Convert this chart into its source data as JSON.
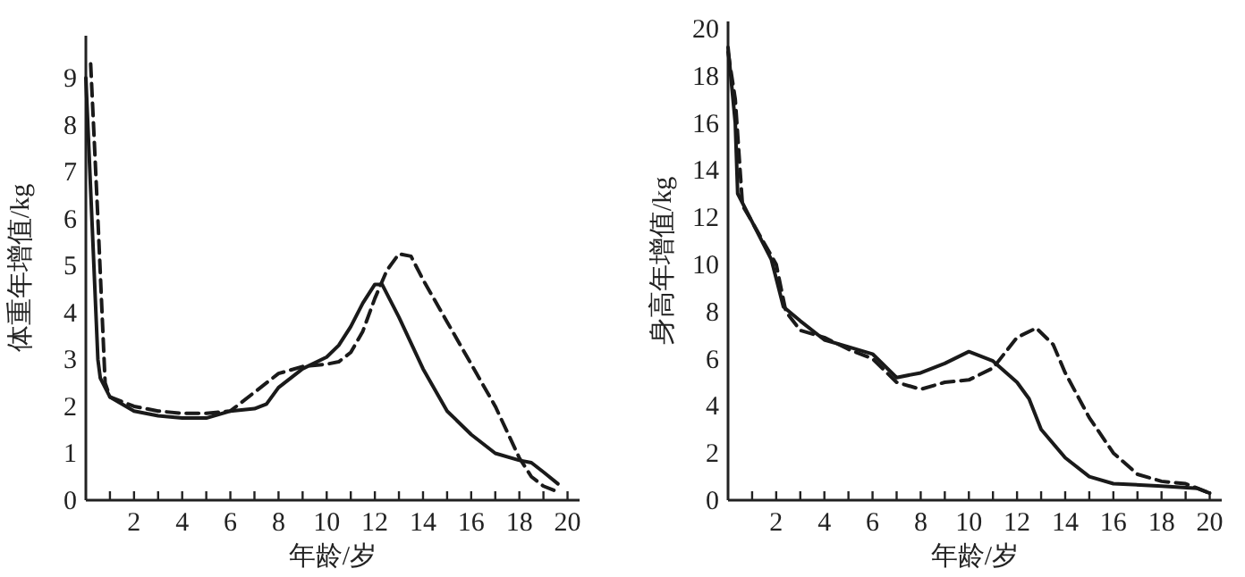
{
  "chart_data": [
    {
      "type": "line",
      "xlabel": "年龄/岁",
      "ylabel": "体重年增值/kg",
      "xlim": [
        0,
        20.5
      ],
      "ylim": [
        0,
        9.9
      ],
      "xticks": [
        {
          "value": 1,
          "label": null
        },
        2,
        {
          "value": 3,
          "label": null
        },
        4,
        {
          "value": 5,
          "label": null
        },
        6,
        {
          "value": 7,
          "label": null
        },
        8,
        {
          "value": 9,
          "label": null
        },
        10,
        {
          "value": 11,
          "label": null
        },
        12,
        {
          "value": 13,
          "label": null
        },
        14,
        {
          "value": 15,
          "label": null
        },
        16,
        {
          "value": 17,
          "label": null
        },
        18,
        {
          "value": 19,
          "label": null
        },
        20
      ],
      "yticks": [
        0,
        1,
        2,
        3,
        4,
        5,
        6,
        7,
        8,
        9
      ],
      "grid": false,
      "marker": "none",
      "series": [
        {
          "color": "#1a1a1a",
          "line_style": "solid",
          "x": [
            0,
            0.5,
            0.6,
            1,
            2,
            3,
            4,
            5,
            6,
            7,
            7.5,
            8,
            9,
            10,
            10.5,
            11,
            11.5,
            12,
            12.3,
            13,
            14,
            15,
            16,
            17,
            18,
            18.5,
            19,
            19.6
          ],
          "values": [
            9,
            3,
            2.6,
            2.2,
            1.9,
            1.8,
            1.75,
            1.75,
            1.9,
            1.95,
            2.05,
            2.4,
            2.8,
            3.05,
            3.3,
            3.7,
            4.2,
            4.6,
            4.6,
            3.9,
            2.8,
            1.9,
            1.4,
            1,
            0.85,
            0.8,
            0.6,
            0.35
          ]
        },
        {
          "color": "#1a1a1a",
          "line_style": "dashed",
          "x": [
            0.2,
            0.5,
            0.8,
            1,
            2,
            3,
            4,
            5,
            6,
            7,
            8,
            9,
            10,
            10.5,
            11,
            11.5,
            12,
            12.5,
            13,
            13.5,
            14,
            15,
            16,
            17,
            18,
            18.5,
            19,
            19.5
          ],
          "values": [
            9.3,
            6,
            2.5,
            2.2,
            2,
            1.9,
            1.85,
            1.85,
            1.9,
            2.3,
            2.7,
            2.85,
            2.9,
            2.95,
            3.15,
            3.6,
            4.3,
            4.9,
            5.25,
            5.2,
            4.7,
            3.8,
            2.9,
            2,
            0.9,
            0.5,
            0.3,
            0.2
          ]
        }
      ]
    },
    {
      "type": "line",
      "xlabel": "年龄/岁",
      "ylabel": "身高年增值/kg",
      "xlim": [
        0,
        20.5
      ],
      "ylim": [
        0,
        20.3
      ],
      "xticks": [
        {
          "value": 1,
          "label": null
        },
        2,
        {
          "value": 3,
          "label": null
        },
        4,
        {
          "value": 5,
          "label": null
        },
        6,
        {
          "value": 7,
          "label": null
        },
        8,
        {
          "value": 9,
          "label": null
        },
        10,
        {
          "value": 11,
          "label": null
        },
        12,
        {
          "value": 13,
          "label": null
        },
        14,
        {
          "value": 15,
          "label": null
        },
        16,
        {
          "value": 17,
          "label": null
        },
        18,
        {
          "value": 19,
          "label": null
        },
        20
      ],
      "yticks": [
        0,
        2,
        4,
        6,
        8,
        10,
        12,
        14,
        16,
        18,
        20
      ],
      "grid": false,
      "marker": "none",
      "series": [
        {
          "color": "#1a1a1a",
          "line_style": "solid",
          "x": [
            0,
            0.3,
            0.4,
            1,
            1.8,
            2.3,
            3,
            4,
            5,
            6,
            7,
            8,
            9,
            10,
            11,
            12,
            12.5,
            13,
            14,
            15,
            16,
            18,
            19.5,
            20
          ],
          "values": [
            19.2,
            16,
            13,
            11.8,
            10.2,
            8.2,
            7.6,
            6.8,
            6.5,
            6.2,
            5.2,
            5.4,
            5.8,
            6.3,
            5.9,
            5,
            4.3,
            3,
            1.8,
            1,
            0.7,
            0.6,
            0.5,
            0.3
          ]
        },
        {
          "color": "#1a1a1a",
          "line_style": "dashed",
          "x": [
            0,
            0.3,
            0.6,
            1,
            2,
            2.4,
            3,
            4,
            5,
            6,
            7,
            8,
            9,
            10,
            11,
            12,
            12.8,
            13.5,
            14,
            15,
            16,
            17,
            18,
            19,
            20
          ],
          "values": [
            19,
            17,
            12.5,
            11.8,
            10,
            8,
            7.2,
            6.9,
            6.4,
            6,
            5,
            4.7,
            5,
            5.1,
            5.6,
            6.9,
            7.3,
            6.6,
            5.4,
            3.5,
            2,
            1.1,
            0.8,
            0.7,
            0.3
          ]
        }
      ]
    }
  ]
}
